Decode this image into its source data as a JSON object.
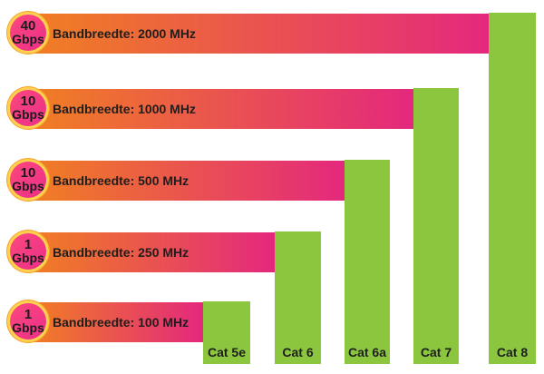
{
  "colors": {
    "column": "#8cc63f",
    "bar_start": "#f07f22",
    "bar_end": "#e4287d",
    "badge": "#ef3b84",
    "badge_ring": "#ffd24d"
  },
  "chart_data": {
    "type": "bar",
    "categories": [
      "Cat 5e",
      "Cat 6",
      "Cat 6a",
      "Cat 7",
      "Cat 8"
    ],
    "bandwidth_mhz": [
      100,
      250,
      500,
      1000,
      2000
    ],
    "speed_gbps": [
      1,
      1,
      10,
      10,
      40
    ],
    "rows": [
      {
        "speed_value": "1",
        "speed_unit": "Gbps",
        "label": "Bandbreedte: 100 MHz"
      },
      {
        "speed_value": "1",
        "speed_unit": "Gbps",
        "label": "Bandbreedte: 250 MHz"
      },
      {
        "speed_value": "10",
        "speed_unit": "Gbps",
        "label": "Bandbreedte: 500 MHz"
      },
      {
        "speed_value": "10",
        "speed_unit": "Gbps",
        "label": "Bandbreedte: 1000 MHz"
      },
      {
        "speed_value": "40",
        "speed_unit": "Gbps",
        "label": "Bandbreedte: 2000 MHz"
      }
    ]
  }
}
